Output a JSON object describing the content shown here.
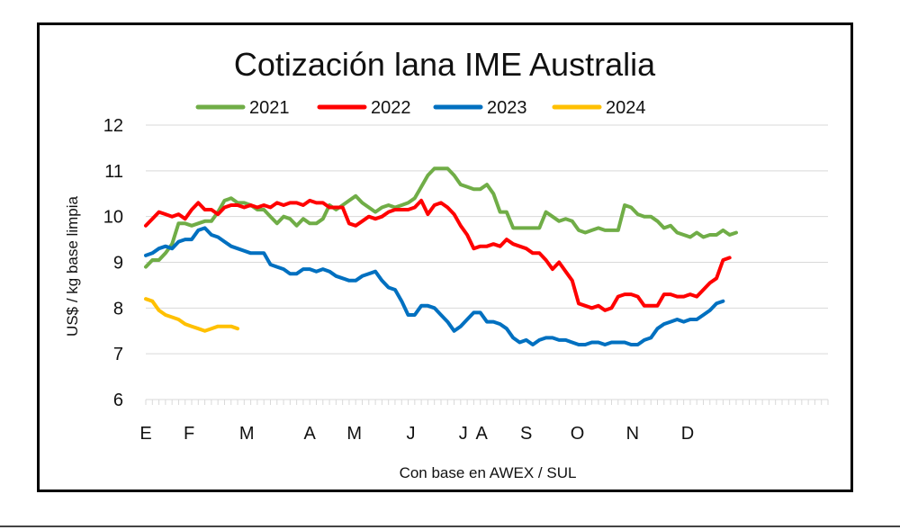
{
  "chart_data": {
    "type": "line",
    "title": "Cotización lana IME Australia",
    "xlabel": "Con base en AWEX / SUL",
    "ylabel": "US$ / kg base limpia",
    "ylim": [
      6,
      12
    ],
    "yticks": [
      6,
      7,
      8,
      9,
      10,
      11,
      12
    ],
    "xlim": [
      0,
      52
    ],
    "xtick_labels": [
      {
        "label": "E",
        "x": 0
      },
      {
        "label": "F",
        "x": 3.3
      },
      {
        "label": "M",
        "x": 7.7
      },
      {
        "label": "A",
        "x": 12.5
      },
      {
        "label": "M",
        "x": 15.9
      },
      {
        "label": "J",
        "x": 20.2
      },
      {
        "label": "J",
        "x": 24.2
      },
      {
        "label": "A",
        "x": 25.6
      },
      {
        "label": "S",
        "x": 29.0
      },
      {
        "label": "O",
        "x": 32.9
      },
      {
        "label": "N",
        "x": 37.1
      },
      {
        "label": "D",
        "x": 41.3
      }
    ],
    "grid": "horizontal",
    "legend_position": "top",
    "series": [
      {
        "name": "2021",
        "color": "#70ad47",
        "points": [
          [
            0,
            8.9
          ],
          [
            0.5,
            9.05
          ],
          [
            1,
            9.05
          ],
          [
            1.5,
            9.2
          ],
          [
            2,
            9.4
          ],
          [
            2.5,
            9.85
          ],
          [
            3,
            9.85
          ],
          [
            3.5,
            9.8
          ],
          [
            4,
            9.85
          ],
          [
            4.5,
            9.9
          ],
          [
            5,
            9.9
          ],
          [
            5.5,
            10.1
          ],
          [
            6,
            10.35
          ],
          [
            6.5,
            10.4
          ],
          [
            7,
            10.3
          ],
          [
            7.5,
            10.3
          ],
          [
            8,
            10.25
          ],
          [
            8.5,
            10.15
          ],
          [
            9,
            10.15
          ],
          [
            9.5,
            10.0
          ],
          [
            10,
            9.85
          ],
          [
            10.5,
            10.0
          ],
          [
            11,
            9.95
          ],
          [
            11.5,
            9.8
          ],
          [
            12,
            9.95
          ],
          [
            12.5,
            9.85
          ],
          [
            13,
            9.85
          ],
          [
            13.5,
            9.95
          ],
          [
            14,
            10.25
          ],
          [
            14.5,
            10.15
          ],
          [
            15,
            10.25
          ],
          [
            15.5,
            10.35
          ],
          [
            16,
            10.45
          ],
          [
            16.5,
            10.3
          ],
          [
            17,
            10.2
          ],
          [
            17.5,
            10.1
          ],
          [
            18,
            10.2
          ],
          [
            18.5,
            10.25
          ],
          [
            19,
            10.2
          ],
          [
            19.5,
            10.25
          ],
          [
            20,
            10.3
          ],
          [
            20.5,
            10.4
          ],
          [
            21,
            10.65
          ],
          [
            21.5,
            10.9
          ],
          [
            22,
            11.05
          ],
          [
            22.5,
            11.05
          ],
          [
            23,
            11.05
          ],
          [
            23.5,
            10.9
          ],
          [
            24,
            10.7
          ],
          [
            24.5,
            10.65
          ],
          [
            25,
            10.6
          ],
          [
            25.5,
            10.6
          ],
          [
            26,
            10.7
          ],
          [
            26.5,
            10.5
          ],
          [
            27,
            10.1
          ],
          [
            27.5,
            10.1
          ],
          [
            28,
            9.75
          ],
          [
            28.5,
            9.75
          ],
          [
            29,
            9.75
          ],
          [
            29.5,
            9.75
          ],
          [
            30,
            9.75
          ],
          [
            30.5,
            10.1
          ],
          [
            31,
            10.0
          ],
          [
            31.5,
            9.9
          ],
          [
            32,
            9.95
          ],
          [
            32.5,
            9.9
          ],
          [
            33,
            9.7
          ],
          [
            33.5,
            9.65
          ],
          [
            34,
            9.7
          ],
          [
            34.5,
            9.75
          ],
          [
            35,
            9.7
          ],
          [
            35.5,
            9.7
          ],
          [
            36,
            9.7
          ],
          [
            36.5,
            10.25
          ],
          [
            37,
            10.2
          ],
          [
            37.5,
            10.05
          ],
          [
            38,
            10.0
          ],
          [
            38.5,
            10.0
          ],
          [
            39,
            9.9
          ],
          [
            39.5,
            9.75
          ],
          [
            40,
            9.8
          ],
          [
            40.5,
            9.65
          ],
          [
            41,
            9.6
          ],
          [
            41.5,
            9.55
          ],
          [
            42,
            9.65
          ],
          [
            42.5,
            9.55
          ],
          [
            43,
            9.6
          ],
          [
            43.5,
            9.6
          ],
          [
            44,
            9.7
          ],
          [
            44.5,
            9.6
          ],
          [
            45,
            9.65
          ]
        ]
      },
      {
        "name": "2022",
        "color": "#ff0000",
        "points": [
          [
            0,
            9.8
          ],
          [
            0.5,
            9.95
          ],
          [
            1,
            10.1
          ],
          [
            1.5,
            10.05
          ],
          [
            2,
            10.0
          ],
          [
            2.5,
            10.05
          ],
          [
            3,
            9.95
          ],
          [
            3.5,
            10.15
          ],
          [
            4,
            10.3
          ],
          [
            4.5,
            10.15
          ],
          [
            5,
            10.15
          ],
          [
            5.5,
            10.05
          ],
          [
            6,
            10.2
          ],
          [
            6.5,
            10.25
          ],
          [
            7,
            10.25
          ],
          [
            7.5,
            10.2
          ],
          [
            8,
            10.25
          ],
          [
            8.5,
            10.2
          ],
          [
            9,
            10.25
          ],
          [
            9.5,
            10.2
          ],
          [
            10,
            10.3
          ],
          [
            10.5,
            10.25
          ],
          [
            11,
            10.3
          ],
          [
            11.5,
            10.3
          ],
          [
            12,
            10.25
          ],
          [
            12.5,
            10.35
          ],
          [
            13,
            10.3
          ],
          [
            13.5,
            10.3
          ],
          [
            14,
            10.2
          ],
          [
            14.5,
            10.2
          ],
          [
            15,
            10.2
          ],
          [
            15.5,
            9.85
          ],
          [
            16,
            9.8
          ],
          [
            16.5,
            9.9
          ],
          [
            17,
            10.0
          ],
          [
            17.5,
            9.95
          ],
          [
            18,
            10.0
          ],
          [
            18.5,
            10.1
          ],
          [
            19,
            10.15
          ],
          [
            19.5,
            10.15
          ],
          [
            20,
            10.15
          ],
          [
            20.5,
            10.2
          ],
          [
            21,
            10.35
          ],
          [
            21.5,
            10.05
          ],
          [
            22,
            10.25
          ],
          [
            22.5,
            10.3
          ],
          [
            23,
            10.2
          ],
          [
            23.5,
            10.05
          ],
          [
            24,
            9.8
          ],
          [
            24.5,
            9.6
          ],
          [
            25,
            9.3
          ],
          [
            25.5,
            9.35
          ],
          [
            26,
            9.35
          ],
          [
            26.5,
            9.4
          ],
          [
            27,
            9.35
          ],
          [
            27.5,
            9.5
          ],
          [
            28,
            9.4
          ],
          [
            28.5,
            9.35
          ],
          [
            29,
            9.3
          ],
          [
            29.5,
            9.2
          ],
          [
            30,
            9.2
          ],
          [
            30.5,
            9.05
          ],
          [
            31,
            8.85
          ],
          [
            31.5,
            9.0
          ],
          [
            32,
            8.8
          ],
          [
            32.5,
            8.6
          ],
          [
            33,
            8.1
          ],
          [
            33.5,
            8.05
          ],
          [
            34,
            8.0
          ],
          [
            34.5,
            8.05
          ],
          [
            35,
            7.95
          ],
          [
            35.5,
            8.0
          ],
          [
            36,
            8.25
          ],
          [
            36.5,
            8.3
          ],
          [
            37,
            8.3
          ],
          [
            37.5,
            8.25
          ],
          [
            38,
            8.05
          ],
          [
            38.5,
            8.05
          ],
          [
            39,
            8.05
          ],
          [
            39.5,
            8.3
          ],
          [
            40,
            8.3
          ],
          [
            40.5,
            8.25
          ],
          [
            41,
            8.25
          ],
          [
            41.5,
            8.3
          ],
          [
            42,
            8.25
          ],
          [
            42.5,
            8.4
          ],
          [
            43,
            8.55
          ],
          [
            43.5,
            8.65
          ],
          [
            44,
            9.05
          ],
          [
            44.5,
            9.1
          ]
        ]
      },
      {
        "name": "2023",
        "color": "#0070c0",
        "points": [
          [
            0,
            9.15
          ],
          [
            0.5,
            9.2
          ],
          [
            1,
            9.3
          ],
          [
            1.5,
            9.35
          ],
          [
            2,
            9.3
          ],
          [
            2.5,
            9.45
          ],
          [
            3,
            9.5
          ],
          [
            3.5,
            9.5
          ],
          [
            4,
            9.7
          ],
          [
            4.5,
            9.75
          ],
          [
            5,
            9.6
          ],
          [
            5.5,
            9.55
          ],
          [
            6,
            9.45
          ],
          [
            6.5,
            9.35
          ],
          [
            7,
            9.3
          ],
          [
            7.5,
            9.25
          ],
          [
            8,
            9.2
          ],
          [
            8.5,
            9.2
          ],
          [
            9,
            9.2
          ],
          [
            9.5,
            8.95
          ],
          [
            10,
            8.9
          ],
          [
            10.5,
            8.85
          ],
          [
            11,
            8.75
          ],
          [
            11.5,
            8.75
          ],
          [
            12,
            8.85
          ],
          [
            12.5,
            8.85
          ],
          [
            13,
            8.8
          ],
          [
            13.5,
            8.85
          ],
          [
            14,
            8.8
          ],
          [
            14.5,
            8.7
          ],
          [
            15,
            8.65
          ],
          [
            15.5,
            8.6
          ],
          [
            16,
            8.6
          ],
          [
            16.5,
            8.7
          ],
          [
            17,
            8.75
          ],
          [
            17.5,
            8.8
          ],
          [
            18,
            8.6
          ],
          [
            18.5,
            8.45
          ],
          [
            19,
            8.4
          ],
          [
            19.5,
            8.15
          ],
          [
            20,
            7.85
          ],
          [
            20.5,
            7.85
          ],
          [
            21,
            8.05
          ],
          [
            21.5,
            8.05
          ],
          [
            22,
            8.0
          ],
          [
            22.5,
            7.85
          ],
          [
            23,
            7.7
          ],
          [
            23.5,
            7.5
          ],
          [
            24,
            7.6
          ],
          [
            24.5,
            7.75
          ],
          [
            25,
            7.9
          ],
          [
            25.5,
            7.9
          ],
          [
            26,
            7.7
          ],
          [
            26.5,
            7.7
          ],
          [
            27,
            7.65
          ],
          [
            27.5,
            7.55
          ],
          [
            28,
            7.35
          ],
          [
            28.5,
            7.25
          ],
          [
            29,
            7.3
          ],
          [
            29.5,
            7.2
          ],
          [
            30,
            7.3
          ],
          [
            30.5,
            7.35
          ],
          [
            31,
            7.35
          ],
          [
            31.5,
            7.3
          ],
          [
            32,
            7.3
          ],
          [
            32.5,
            7.25
          ],
          [
            33,
            7.2
          ],
          [
            33.5,
            7.2
          ],
          [
            34,
            7.25
          ],
          [
            34.5,
            7.25
          ],
          [
            35,
            7.2
          ],
          [
            35.5,
            7.25
          ],
          [
            36,
            7.25
          ],
          [
            36.5,
            7.25
          ],
          [
            37,
            7.2
          ],
          [
            37.5,
            7.2
          ],
          [
            38,
            7.3
          ],
          [
            38.5,
            7.35
          ],
          [
            39,
            7.55
          ],
          [
            39.5,
            7.65
          ],
          [
            40,
            7.7
          ],
          [
            40.5,
            7.75
          ],
          [
            41,
            7.7
          ],
          [
            41.5,
            7.75
          ],
          [
            42,
            7.75
          ],
          [
            42.5,
            7.85
          ],
          [
            43,
            7.95
          ],
          [
            43.5,
            8.1
          ],
          [
            44,
            8.15
          ]
        ]
      },
      {
        "name": "2024",
        "color": "#ffc000",
        "points": [
          [
            0,
            8.2
          ],
          [
            0.5,
            8.15
          ],
          [
            1,
            7.95
          ],
          [
            1.5,
            7.85
          ],
          [
            2,
            7.8
          ],
          [
            2.5,
            7.75
          ],
          [
            3,
            7.65
          ],
          [
            3.5,
            7.6
          ],
          [
            4,
            7.55
          ],
          [
            4.5,
            7.5
          ],
          [
            5,
            7.55
          ],
          [
            5.5,
            7.6
          ],
          [
            6,
            7.6
          ],
          [
            6.5,
            7.6
          ],
          [
            7,
            7.55
          ]
        ]
      }
    ]
  }
}
